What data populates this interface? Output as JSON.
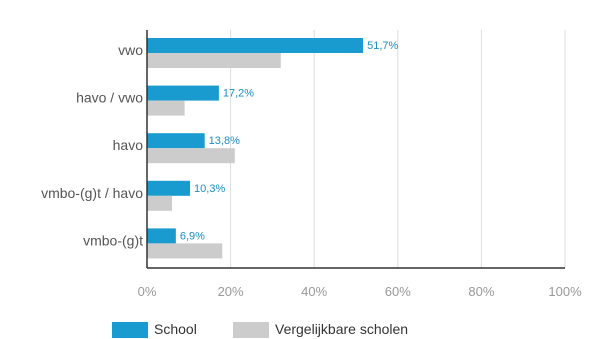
{
  "chart_data": {
    "type": "bar",
    "orientation": "horizontal",
    "categories": [
      "vwo",
      "havo / vwo",
      "havo",
      "vmbo-(g)t / havo",
      "vmbo-(g)t"
    ],
    "series": [
      {
        "name": "School",
        "values": [
          51.7,
          17.2,
          13.8,
          10.3,
          6.9
        ],
        "labels": [
          "51,7%",
          "17,2%",
          "13,8%",
          "10,3%",
          "6,9%"
        ],
        "color": "#1a9bd0"
      },
      {
        "name": "Vergelijkbare scholen",
        "values": [
          32,
          9,
          21,
          6,
          18
        ],
        "color": "#cccccc"
      }
    ],
    "xlim": [
      0,
      100
    ],
    "x_ticks": [
      0,
      20,
      40,
      60,
      80,
      100
    ],
    "x_tick_labels": [
      "0%",
      "20%",
      "40%",
      "60%",
      "80%",
      "100%"
    ],
    "grid": true,
    "legend_position": "bottom-left"
  }
}
